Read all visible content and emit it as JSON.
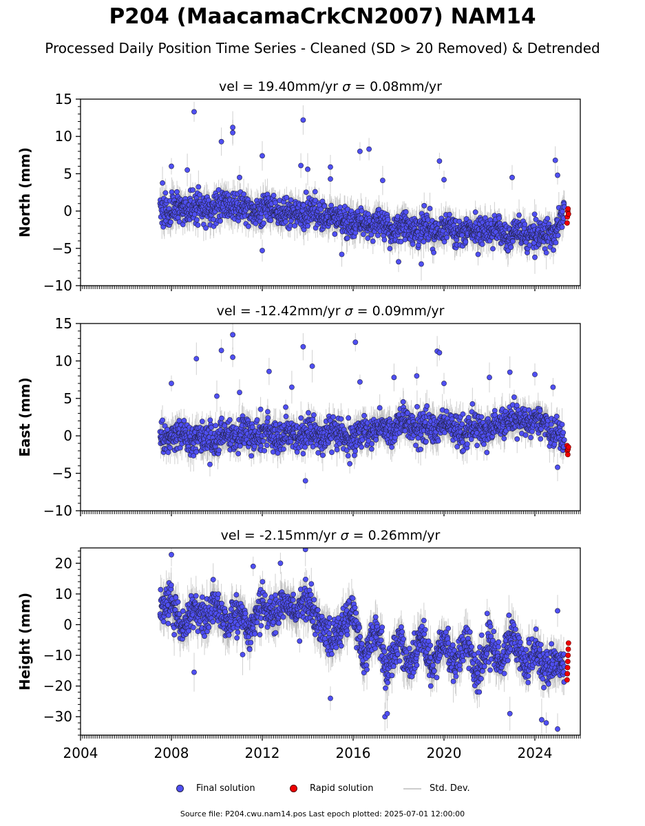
{
  "header": {
    "title": "P204 (MaacamaCrkCN2007) NAM14",
    "subtitle": "Processed Daily Position Time Series - Cleaned (SD > 20 Removed) & Detrended"
  },
  "footer": "Source file: P204.cwu.nam14.pos  Last epoch plotted: 2025-07-01 12:00:00",
  "legend": {
    "final": "Final solution",
    "rapid": "Rapid solution",
    "std": "Std. Dev."
  },
  "colors": {
    "final": "#4f4ff2",
    "rapid": "#ee0000",
    "std": "#b0b0b0",
    "edge": "#222244"
  },
  "chart_data": [
    {
      "type": "scatter",
      "ylabel": "North (mm)",
      "title": "vel = 19.40mm/yr   σ = 0.08mm/yr",
      "title_parts": {
        "pre": "vel = 19.40mm/yr   ",
        "sigma": "σ",
        "post": " = 0.08mm/yr"
      },
      "xlim": [
        2004,
        2026
      ],
      "ylim": [
        -10,
        15
      ],
      "yticks": [
        -10,
        -5,
        0,
        5,
        10,
        15
      ],
      "ytick_labels": [
        "−10",
        "−5",
        "0",
        "5",
        "10",
        "15"
      ],
      "series_final": {
        "x": [
          2007.5,
          2008.0,
          2008.5,
          2009.0,
          2009.5,
          2010.0,
          2010.5,
          2011.0,
          2011.5,
          2012.0,
          2012.5,
          2013.0,
          2013.5,
          2014.0,
          2014.5,
          2015.0,
          2015.5,
          2016.0,
          2016.5,
          2017.0,
          2017.5,
          2018.0,
          2018.5,
          2019.0,
          2019.5,
          2020.0,
          2020.5,
          2021.0,
          2021.5,
          2022.0,
          2022.5,
          2023.0,
          2023.5,
          2024.0,
          2024.5,
          2025.0,
          2025.3
        ],
        "y": [
          0.0,
          0.3,
          0.2,
          0.5,
          0.0,
          0.6,
          0.8,
          0.3,
          -0.2,
          0.4,
          0.0,
          -0.2,
          -0.5,
          -0.3,
          -0.6,
          -0.8,
          -1.2,
          -1.5,
          -1.8,
          -2.0,
          -2.2,
          -2.3,
          -2.5,
          -2.4,
          -2.6,
          -2.3,
          -2.8,
          -2.9,
          -3.0,
          -2.8,
          -3.1,
          -3.0,
          -2.9,
          -3.2,
          -3.0,
          -2.0,
          -0.5
        ],
        "outliers": [
          [
            2008.0,
            6.0
          ],
          [
            2008.7,
            5.5
          ],
          [
            2009.0,
            13.3
          ],
          [
            2010.2,
            9.3
          ],
          [
            2010.7,
            11.2
          ],
          [
            2010.7,
            10.5
          ],
          [
            2011.0,
            4.5
          ],
          [
            2012.0,
            7.4
          ],
          [
            2012.0,
            -5.3
          ],
          [
            2013.8,
            12.2
          ],
          [
            2013.7,
            6.1
          ],
          [
            2014.0,
            5.6
          ],
          [
            2015.0,
            5.9
          ],
          [
            2015.0,
            4.3
          ],
          [
            2015.5,
            -5.8
          ],
          [
            2016.3,
            8.0
          ],
          [
            2016.7,
            8.3
          ],
          [
            2017.3,
            4.1
          ],
          [
            2018.0,
            -6.8
          ],
          [
            2019.0,
            -7.1
          ],
          [
            2019.8,
            6.7
          ],
          [
            2020.0,
            4.2
          ],
          [
            2021.5,
            -5.8
          ],
          [
            2023.0,
            4.5
          ],
          [
            2024.0,
            -6.2
          ],
          [
            2024.9,
            6.8
          ],
          [
            2025.0,
            4.8
          ]
        ]
      },
      "series_rapid": {
        "x": [
          2025.42,
          2025.43,
          2025.45,
          2025.46,
          2025.48
        ],
        "y": [
          -1.6,
          -0.8,
          0.0,
          0.3,
          -0.4
        ]
      }
    },
    {
      "type": "scatter",
      "ylabel": "East (mm)",
      "title": "vel = -12.42mm/yr   σ = 0.09mm/yr",
      "title_parts": {
        "pre": "vel = -12.42mm/yr   ",
        "sigma": "σ",
        "post": " = 0.09mm/yr"
      },
      "xlim": [
        2004,
        2026
      ],
      "ylim": [
        -10,
        15
      ],
      "yticks": [
        -10,
        -5,
        0,
        5,
        10,
        15
      ],
      "ytick_labels": [
        "−10",
        "−5",
        "0",
        "5",
        "10",
        "15"
      ],
      "series_final": {
        "x": [
          2007.5,
          2008.0,
          2008.5,
          2009.0,
          2009.5,
          2010.0,
          2010.5,
          2011.0,
          2011.5,
          2012.0,
          2012.5,
          2013.0,
          2013.5,
          2014.0,
          2014.5,
          2015.0,
          2015.5,
          2016.0,
          2016.5,
          2017.0,
          2017.5,
          2018.0,
          2018.5,
          2019.0,
          2019.5,
          2020.0,
          2020.5,
          2021.0,
          2021.5,
          2022.0,
          2022.5,
          2023.0,
          2023.5,
          2024.0,
          2024.5,
          2025.0,
          2025.3
        ],
        "y": [
          0.0,
          -0.5,
          0.5,
          -0.5,
          0.0,
          -0.3,
          0.2,
          0.0,
          0.2,
          0.3,
          0.0,
          0.3,
          -0.2,
          0.4,
          0.0,
          0.8,
          0.2,
          -0.5,
          0.5,
          1.2,
          0.8,
          1.5,
          1.0,
          1.2,
          0.6,
          1.6,
          1.0,
          0.8,
          1.2,
          0.5,
          1.5,
          2.5,
          1.8,
          2.0,
          1.5,
          0.5,
          -1.0
        ],
        "outliers": [
          [
            2008.0,
            7.0
          ],
          [
            2009.1,
            10.3
          ],
          [
            2010.0,
            5.3
          ],
          [
            2010.2,
            11.4
          ],
          [
            2010.7,
            13.5
          ],
          [
            2010.7,
            10.5
          ],
          [
            2011.0,
            5.8
          ],
          [
            2012.3,
            8.6
          ],
          [
            2013.3,
            6.5
          ],
          [
            2013.8,
            11.9
          ],
          [
            2014.2,
            9.3
          ],
          [
            2013.9,
            -6.0
          ],
          [
            2016.1,
            12.5
          ],
          [
            2016.3,
            7.2
          ],
          [
            2017.8,
            7.8
          ],
          [
            2018.8,
            8.0
          ],
          [
            2019.7,
            11.3
          ],
          [
            2019.8,
            11.1
          ],
          [
            2020.0,
            7.0
          ],
          [
            2022.0,
            7.8
          ],
          [
            2022.9,
            8.5
          ],
          [
            2024.0,
            8.2
          ],
          [
            2024.8,
            6.5
          ],
          [
            2025.0,
            -4.2
          ]
        ]
      },
      "series_rapid": {
        "x": [
          2025.42,
          2025.43,
          2025.45,
          2025.46,
          2025.48
        ],
        "y": [
          -1.3,
          -2.0,
          -2.5,
          -1.8,
          -1.5
        ]
      }
    },
    {
      "type": "scatter",
      "ylabel": "Height (mm)",
      "title": "vel = -2.15mm/yr   σ = 0.26mm/yr",
      "title_parts": {
        "pre": "vel = -2.15mm/yr   ",
        "sigma": "σ",
        "post": " = 0.26mm/yr"
      },
      "xlim": [
        2004,
        2026
      ],
      "ylim": [
        -36,
        25
      ],
      "yticks": [
        -30,
        -20,
        -10,
        0,
        10,
        20
      ],
      "ytick_labels": [
        "−30",
        "−20",
        "−10",
        "0",
        "10",
        "20"
      ],
      "xticks": [
        2004,
        2008,
        2012,
        2016,
        2020,
        2024
      ],
      "xtick_labels": [
        "2004",
        "2008",
        "2012",
        "2016",
        "2020",
        "2024"
      ],
      "series_final": {
        "x": [
          2007.5,
          2008.0,
          2008.5,
          2009.0,
          2009.5,
          2010.0,
          2010.5,
          2011.0,
          2011.5,
          2012.0,
          2012.5,
          2013.0,
          2013.5,
          2014.0,
          2014.5,
          2015.0,
          2015.5,
          2016.0,
          2016.5,
          2017.0,
          2017.5,
          2018.0,
          2018.5,
          2019.0,
          2019.5,
          2020.0,
          2020.5,
          2021.0,
          2021.5,
          2022.0,
          2022.5,
          2023.0,
          2023.5,
          2024.0,
          2024.5,
          2025.0,
          2025.3
        ],
        "y": [
          5,
          8,
          -3,
          6,
          2,
          8,
          0,
          4,
          -2,
          7,
          2,
          8,
          3,
          9,
          0,
          -6,
          -2,
          5,
          -12,
          0,
          -15,
          -5,
          -14,
          -3,
          -15,
          -4,
          -14,
          -5,
          -15,
          -6,
          -12,
          -2,
          -13,
          -8,
          -15,
          -12,
          -14
        ],
        "outliers": [
          [
            2008.0,
            22.8
          ],
          [
            2009.0,
            -15.5
          ],
          [
            2011.6,
            19.0
          ],
          [
            2012.8,
            20.0
          ],
          [
            2013.9,
            24.5
          ],
          [
            2015.0,
            -24.0
          ],
          [
            2017.4,
            -30.0
          ],
          [
            2017.5,
            -29.0
          ],
          [
            2022.9,
            -29.0
          ],
          [
            2024.3,
            -31.0
          ],
          [
            2024.5,
            -32.0
          ],
          [
            2025.0,
            -34.0
          ],
          [
            2025.0,
            4.5
          ]
        ]
      },
      "series_rapid": {
        "x": [
          2025.42,
          2025.43,
          2025.44,
          2025.45,
          2025.46,
          2025.47,
          2025.48
        ],
        "y": [
          -18,
          -16,
          -14,
          -12,
          -10,
          -8,
          -6
        ]
      }
    }
  ]
}
